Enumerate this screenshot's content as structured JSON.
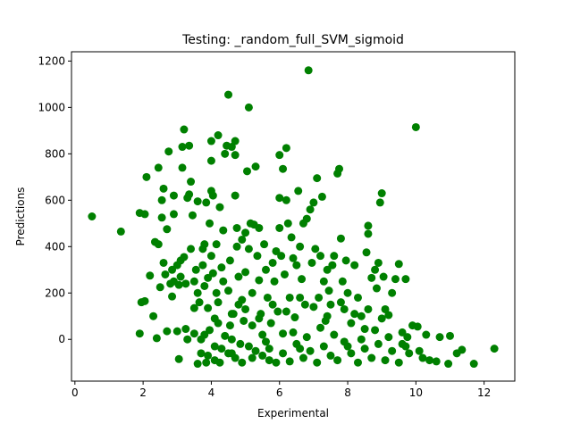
{
  "chart_data": {
    "type": "scatter",
    "title": "Testing: _random_full_SVM_sigmoid",
    "xlabel": "Experimental",
    "ylabel": "Predictions",
    "xlim": [
      -0.1,
      12.9
    ],
    "ylim": [
      -180,
      1240
    ],
    "xticks": [
      0,
      2,
      4,
      6,
      8,
      10,
      12
    ],
    "yticks": [
      0,
      200,
      400,
      600,
      800,
      1000,
      1200
    ],
    "grid": false,
    "series": [
      {
        "color": "#008000",
        "marker": "circle",
        "points": [
          [
            0.5,
            530
          ],
          [
            1.35,
            465
          ],
          [
            1.9,
            25
          ],
          [
            1.9,
            545
          ],
          [
            1.95,
            160
          ],
          [
            2.05,
            540
          ],
          [
            2.05,
            165
          ],
          [
            2.1,
            700
          ],
          [
            2.2,
            275
          ],
          [
            2.3,
            100
          ],
          [
            2.35,
            420
          ],
          [
            2.4,
            5
          ],
          [
            2.45,
            740
          ],
          [
            2.45,
            410
          ],
          [
            2.5,
            225
          ],
          [
            2.55,
            525
          ],
          [
            2.55,
            600
          ],
          [
            2.6,
            650
          ],
          [
            2.6,
            330
          ],
          [
            2.65,
            280
          ],
          [
            2.7,
            35
          ],
          [
            2.7,
            475
          ],
          [
            2.75,
            810
          ],
          [
            2.8,
            240
          ],
          [
            2.85,
            300
          ],
          [
            2.85,
            185
          ],
          [
            2.9,
            540
          ],
          [
            2.9,
            250
          ],
          [
            2.9,
            620
          ],
          [
            3.0,
            35
          ],
          [
            3.0,
            320
          ],
          [
            3.05,
            235
          ],
          [
            3.05,
            -85
          ],
          [
            3.1,
            270
          ],
          [
            3.1,
            340
          ],
          [
            3.15,
            740
          ],
          [
            3.15,
            830
          ],
          [
            3.2,
            355
          ],
          [
            3.2,
            905
          ],
          [
            3.25,
            240
          ],
          [
            3.25,
            45
          ],
          [
            3.3,
            610
          ],
          [
            3.3,
            0
          ],
          [
            3.35,
            835
          ],
          [
            3.35,
            625
          ],
          [
            3.4,
            680
          ],
          [
            3.4,
            390
          ],
          [
            3.45,
            535
          ],
          [
            3.5,
            250
          ],
          [
            3.5,
            135
          ],
          [
            3.5,
            25
          ],
          [
            3.55,
            300
          ],
          [
            3.6,
            595
          ],
          [
            3.6,
            -105
          ],
          [
            3.6,
            200
          ],
          [
            3.65,
            160
          ],
          [
            3.7,
            0
          ],
          [
            3.7,
            -60
          ],
          [
            3.75,
            320
          ],
          [
            3.75,
            390
          ],
          [
            3.8,
            410
          ],
          [
            3.8,
            230
          ],
          [
            3.8,
            20
          ],
          [
            3.85,
            -100
          ],
          [
            3.85,
            590
          ],
          [
            3.9,
            265
          ],
          [
            3.9,
            135
          ],
          [
            3.95,
            500
          ],
          [
            3.95,
            40
          ],
          [
            4.0,
            770
          ],
          [
            4.0,
            855
          ],
          [
            4.0,
            360
          ],
          [
            4.0,
            640
          ],
          [
            4.05,
            620
          ],
          [
            4.05,
            285
          ],
          [
            4.1,
            90
          ],
          [
            4.1,
            -30
          ],
          [
            4.15,
            200
          ],
          [
            4.15,
            410
          ],
          [
            4.2,
            880
          ],
          [
            4.2,
            160
          ],
          [
            4.25,
            570
          ],
          [
            4.25,
            -100
          ],
          [
            4.3,
            310
          ],
          [
            4.35,
            470
          ],
          [
            4.35,
            250
          ],
          [
            4.4,
            15
          ],
          [
            4.4,
            800
          ],
          [
            4.45,
            835
          ],
          [
            4.5,
            1055
          ],
          [
            4.5,
            210
          ],
          [
            4.55,
            340
          ],
          [
            4.55,
            60
          ],
          [
            4.6,
            830
          ],
          [
            4.6,
            -60
          ],
          [
            4.65,
            110
          ],
          [
            4.7,
            855
          ],
          [
            4.7,
            795
          ],
          [
            4.7,
            620
          ],
          [
            4.75,
            480
          ],
          [
            4.75,
            400
          ],
          [
            4.8,
            270
          ],
          [
            4.8,
            150
          ],
          [
            4.85,
            -20
          ],
          [
            4.9,
            430
          ],
          [
            4.9,
            170
          ],
          [
            4.95,
            80
          ],
          [
            5.0,
            460
          ],
          [
            5.0,
            290
          ],
          [
            5.05,
            725
          ],
          [
            5.1,
            1000
          ],
          [
            5.1,
            390
          ],
          [
            5.15,
            500
          ],
          [
            5.2,
            200
          ],
          [
            5.2,
            -80
          ],
          [
            5.25,
            495
          ],
          [
            5.3,
            745
          ],
          [
            5.35,
            360
          ],
          [
            5.4,
            480
          ],
          [
            5.4,
            255
          ],
          [
            5.45,
            110
          ],
          [
            5.5,
            20
          ],
          [
            5.55,
            410
          ],
          [
            5.6,
            300
          ],
          [
            5.65,
            180
          ],
          [
            5.7,
            -40
          ],
          [
            5.75,
            70
          ],
          [
            5.8,
            330
          ],
          [
            5.85,
            250
          ],
          [
            5.9,
            380
          ],
          [
            5.95,
            120
          ],
          [
            6.0,
            795
          ],
          [
            6.0,
            610
          ],
          [
            6.0,
            480
          ],
          [
            6.05,
            360
          ],
          [
            6.1,
            735
          ],
          [
            6.1,
            25
          ],
          [
            6.15,
            280
          ],
          [
            6.2,
            825
          ],
          [
            6.2,
            600
          ],
          [
            6.25,
            500
          ],
          [
            6.3,
            180
          ],
          [
            6.35,
            440
          ],
          [
            6.4,
            350
          ],
          [
            6.45,
            95
          ],
          [
            6.5,
            320
          ],
          [
            6.55,
            640
          ],
          [
            6.6,
            400
          ],
          [
            6.6,
            -40
          ],
          [
            6.65,
            260
          ],
          [
            6.7,
            500
          ],
          [
            6.75,
            150
          ],
          [
            6.8,
            520
          ],
          [
            6.85,
            1160
          ],
          [
            6.9,
            560
          ],
          [
            6.95,
            330
          ],
          [
            7.0,
            590
          ],
          [
            7.05,
            390
          ],
          [
            7.1,
            695
          ],
          [
            7.15,
            180
          ],
          [
            7.2,
            360
          ],
          [
            7.25,
            615
          ],
          [
            7.3,
            250
          ],
          [
            7.35,
            80
          ],
          [
            7.4,
            300
          ],
          [
            7.45,
            210
          ],
          [
            7.5,
            150
          ],
          [
            7.55,
            320
          ],
          [
            7.6,
            360
          ],
          [
            7.7,
            715
          ],
          [
            7.75,
            735
          ],
          [
            7.8,
            435
          ],
          [
            7.85,
            250
          ],
          [
            7.9,
            130
          ],
          [
            7.95,
            340
          ],
          [
            8.0,
            200
          ],
          [
            8.1,
            70
          ],
          [
            8.2,
            320
          ],
          [
            8.3,
            180
          ],
          [
            8.4,
            100
          ],
          [
            8.5,
            45
          ],
          [
            8.55,
            375
          ],
          [
            8.6,
            455
          ],
          [
            8.6,
            490
          ],
          [
            8.7,
            265
          ],
          [
            8.8,
            300
          ],
          [
            8.85,
            220
          ],
          [
            8.9,
            330
          ],
          [
            8.95,
            590
          ],
          [
            9.0,
            630
          ],
          [
            9.05,
            270
          ],
          [
            9.1,
            130
          ],
          [
            9.2,
            105
          ],
          [
            9.3,
            200
          ],
          [
            9.4,
            260
          ],
          [
            9.5,
            325
          ],
          [
            9.6,
            30
          ],
          [
            9.7,
            260
          ],
          [
            9.75,
            10
          ],
          [
            9.8,
            -60
          ],
          [
            9.9,
            60
          ],
          [
            10.0,
            915
          ],
          [
            10.05,
            55
          ],
          [
            10.1,
            -50
          ],
          [
            10.2,
            -80
          ],
          [
            10.4,
            -90
          ],
          [
            10.6,
            -95
          ],
          [
            10.7,
            10
          ],
          [
            10.95,
            -105
          ],
          [
            11.0,
            15
          ],
          [
            11.2,
            -60
          ],
          [
            11.35,
            -45
          ],
          [
            11.7,
            -105
          ],
          [
            12.3,
            -40
          ],
          [
            6.1,
            -60
          ],
          [
            6.3,
            -95
          ],
          [
            6.5,
            -20
          ],
          [
            6.7,
            -80
          ],
          [
            6.9,
            -50
          ],
          [
            7.1,
            -100
          ],
          [
            7.3,
            -30
          ],
          [
            7.5,
            -70
          ],
          [
            7.7,
            -90
          ],
          [
            7.9,
            -10
          ],
          [
            8.1,
            -60
          ],
          [
            8.3,
            -100
          ],
          [
            8.5,
            -40
          ],
          [
            8.7,
            -80
          ],
          [
            8.9,
            -20
          ],
          [
            9.1,
            -90
          ],
          [
            9.3,
            -50
          ],
          [
            9.5,
            -100
          ],
          [
            9.7,
            -30
          ],
          [
            5.9,
            -100
          ],
          [
            5.7,
            -90
          ],
          [
            5.5,
            -70
          ],
          [
            5.3,
            -50
          ],
          [
            5.1,
            -30
          ],
          [
            4.9,
            -100
          ],
          [
            4.7,
            -80
          ],
          [
            4.5,
            -60
          ],
          [
            4.3,
            -40
          ],
          [
            4.1,
            -90
          ],
          [
            3.9,
            -70
          ],
          [
            4.6,
            0
          ],
          [
            5.2,
            60
          ],
          [
            5.6,
            -10
          ],
          [
            6.4,
            30
          ],
          [
            6.8,
            10
          ],
          [
            7.2,
            50
          ],
          [
            7.6,
            20
          ],
          [
            8.0,
            -30
          ],
          [
            8.4,
            0
          ],
          [
            8.8,
            40
          ],
          [
            9.2,
            10
          ],
          [
            9.6,
            -20
          ],
          [
            10.3,
            20
          ],
          [
            5.8,
            150
          ],
          [
            6.2,
            120
          ],
          [
            6.6,
            180
          ],
          [
            7.0,
            140
          ],
          [
            7.4,
            100
          ],
          [
            7.8,
            160
          ],
          [
            8.2,
            110
          ],
          [
            8.6,
            130
          ],
          [
            9.0,
            90
          ],
          [
            5.4,
            90
          ],
          [
            5.0,
            130
          ],
          [
            4.6,
            110
          ],
          [
            4.2,
            70
          ]
        ]
      }
    ]
  }
}
